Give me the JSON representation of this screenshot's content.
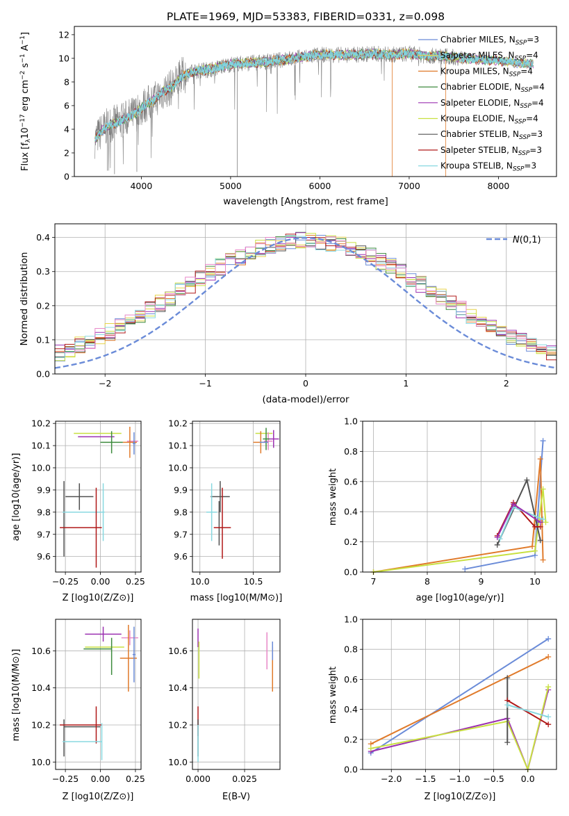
{
  "figure": {
    "title": "PLATE=1969, MJD=53383, FIBERID=0331, z=0.098"
  },
  "chart_data": [
    {
      "id": "spectrum",
      "type": "line",
      "xlabel": "wavelength [Angstrom, rest frame]",
      "ylabel": "Flux [f_λ 10^-17 erg cm^-2 s^-1 A^-1]",
      "xlim": [
        3250,
        8650
      ],
      "ylim": [
        0,
        12.7
      ],
      "xticks": [
        4000,
        5000,
        6000,
        7000,
        8000
      ],
      "yticks": [
        0,
        2,
        4,
        6,
        8,
        10,
        12
      ],
      "grid": false,
      "legend": "right",
      "legend_entries": [
        {
          "name": "Chabrier MILES, N_SSP=3",
          "color": "#6a8bd8"
        },
        {
          "name": "Salpeter MILES, N_SSP=4",
          "color": "#e6d34a"
        },
        {
          "name": "Kroupa MILES, N_SSP=4",
          "color": "#e07a2a"
        },
        {
          "name": "Chabrier ELODIE, N_SSP=4",
          "color": "#3d8a3d"
        },
        {
          "name": "Salpeter ELODIE, N_SSP=4",
          "color": "#9b30b0"
        },
        {
          "name": "Kroupa ELODIE, N_SSP=4",
          "color": "#c8e040"
        },
        {
          "name": "Chabrier STELIB, N_SSP=3",
          "color": "#505050"
        },
        {
          "name": "Salpeter STELIB, N_SSP=3",
          "color": "#b01818"
        },
        {
          "name": "Kroupa STELIB, N_SSP=3",
          "color": "#88d8e0"
        }
      ],
      "data_color": "#808080",
      "model_color": "#7fd3de",
      "model_curve": [
        [
          3480,
          3.1
        ],
        [
          3560,
          3.9
        ],
        [
          3650,
          4.4
        ],
        [
          3750,
          4.6
        ],
        [
          3850,
          5.0
        ],
        [
          3950,
          5.4
        ],
        [
          4050,
          6.1
        ],
        [
          4150,
          6.5
        ],
        [
          4250,
          7.2
        ],
        [
          4350,
          7.6
        ],
        [
          4450,
          8.5
        ],
        [
          4600,
          8.9
        ],
        [
          4800,
          9.1
        ],
        [
          5000,
          9.5
        ],
        [
          5200,
          9.6
        ],
        [
          5400,
          9.7
        ],
        [
          5600,
          9.9
        ],
        [
          5800,
          10.1
        ],
        [
          6000,
          10.3
        ],
        [
          6200,
          10.3
        ],
        [
          6400,
          10.3
        ],
        [
          6600,
          10.4
        ],
        [
          6800,
          10.3
        ],
        [
          7000,
          10.4
        ],
        [
          7200,
          10.2
        ],
        [
          7400,
          10.2
        ],
        [
          7600,
          10.0
        ],
        [
          7800,
          9.9
        ],
        [
          8000,
          9.8
        ],
        [
          8200,
          9.6
        ],
        [
          8390,
          9.5
        ]
      ]
    },
    {
      "id": "residuals",
      "type": "line",
      "xlabel": "(data-model)/error",
      "ylabel": "Normed distribution",
      "xlim": [
        -2.5,
        2.5
      ],
      "ylim": [
        0,
        0.44
      ],
      "xticks": [
        -2,
        -1,
        0,
        1,
        2
      ],
      "yticks": [
        0.0,
        0.1,
        0.2,
        0.3,
        0.4
      ],
      "grid": true,
      "legend": "top-right",
      "reference_label": "N(0,1)",
      "reference_color": "#6a8bd8",
      "hist_colors": [
        "#6a8bd8",
        "#e6d34a",
        "#e07a2a",
        "#3d8a3d",
        "#9b30b0",
        "#c8e040",
        "#505050",
        "#b01818",
        "#88d8e0",
        "#e888c8"
      ]
    },
    {
      "id": "age-vs-Z",
      "type": "scatter",
      "xlabel": "Z [log10(Z/Z⊙)]",
      "ylabel": "age [log10(age/yr)]",
      "xlim": [
        -0.32,
        0.29
      ],
      "ylim": [
        9.53,
        10.21
      ],
      "xticks": [
        -0.25,
        0.0,
        0.25
      ],
      "yticks": [
        9.6,
        9.7,
        9.8,
        9.9,
        10.0,
        10.1,
        10.2
      ],
      "grid": true,
      "points": [
        {
          "color": "#c8e040",
          "x": -0.02,
          "xerr": 0.17,
          "y": 10.155,
          "yerr": 0.0
        },
        {
          "color": "#9b30b0",
          "x": -0.03,
          "xerr": 0.13,
          "y": 10.14,
          "yerr": 0.0
        },
        {
          "color": "#e888c8",
          "x": 0.23,
          "xerr": 0.04,
          "y": 10.12,
          "yerr": 0.0
        },
        {
          "color": "#e07a2a",
          "x": 0.21,
          "xerr": 0.05,
          "y": 10.115,
          "yerr": 0.07
        },
        {
          "color": "#6a8bd8",
          "x": 0.24,
          "xerr": 0.01,
          "y": 10.11,
          "yerr": 0.05
        },
        {
          "color": "#3d8a3d",
          "x": 0.08,
          "xerr": 0.08,
          "y": 10.115,
          "yerr": 0.05
        },
        {
          "color": "#505050",
          "x": -0.15,
          "xerr": 0.1,
          "y": 9.87,
          "yerr": 0.06
        },
        {
          "color": "#505050",
          "x": -0.26,
          "xerr": 0.0,
          "y": 9.77,
          "yerr": 0.17
        },
        {
          "color": "#88d8e0",
          "x": 0.02,
          "xerr": 0.01,
          "y": 9.8,
          "yerr": 0.13
        },
        {
          "color": "#88d8e0",
          "x": -0.13,
          "xerr": 0.14,
          "y": 9.8,
          "yerr": 0.0
        },
        {
          "color": "#b01818",
          "x": -0.03,
          "xerr": 0.0,
          "y": 9.73,
          "yerr": 0.18
        },
        {
          "color": "#b01818",
          "x": -0.14,
          "xerr": 0.15,
          "y": 9.73,
          "yerr": 0.0
        }
      ]
    },
    {
      "id": "age-vs-mass",
      "type": "scatter",
      "xlabel": "mass [log10(M/M⊙)]",
      "ylabel": "",
      "xlim": [
        9.93,
        10.75
      ],
      "ylim": [
        9.53,
        10.21
      ],
      "xticks": [
        10.0,
        10.5
      ],
      "yticks": [
        9.6,
        9.7,
        9.8,
        9.9,
        10.0,
        10.1,
        10.2
      ],
      "grid": true,
      "points": [
        {
          "color": "#c8e040",
          "x": 10.6,
          "xerr": 0.08,
          "y": 10.155,
          "yerr": 0.0
        },
        {
          "color": "#9b30b0",
          "x": 10.69,
          "xerr": 0.05,
          "y": 10.13,
          "yerr": 0.04
        },
        {
          "color": "#e07a2a",
          "x": 10.57,
          "xerr": 0.07,
          "y": 10.115,
          "yerr": 0.05
        },
        {
          "color": "#e888c8",
          "x": 10.64,
          "xerr": 0.04,
          "y": 10.12,
          "yerr": 0.04
        },
        {
          "color": "#3d8a3d",
          "x": 10.62,
          "xerr": 0.03,
          "y": 10.13,
          "yerr": 0.05
        },
        {
          "color": "#6a8bd8",
          "x": 10.6,
          "xerr": 0.04,
          "y": 10.115,
          "yerr": 0.0
        },
        {
          "color": "#505050",
          "x": 10.19,
          "xerr": 0.09,
          "y": 9.87,
          "yerr": 0.07
        },
        {
          "color": "#505050",
          "x": 10.18,
          "xerr": 0.0,
          "y": 9.75,
          "yerr": 0.1
        },
        {
          "color": "#88d8e0",
          "x": 10.11,
          "xerr": 0.05,
          "y": 9.8,
          "yerr": 0.13
        },
        {
          "color": "#b01818",
          "x": 10.21,
          "xerr": 0.08,
          "y": 9.73,
          "yerr": 0.0
        },
        {
          "color": "#b01818",
          "x": 10.21,
          "xerr": 0.0,
          "y": 9.75,
          "yerr": 0.16
        }
      ]
    },
    {
      "id": "weight-vs-age",
      "type": "line",
      "xlabel": "age [log10(age/yr)]",
      "ylabel": "mass weight",
      "xlim": [
        6.8,
        10.4
      ],
      "ylim": [
        0,
        1.0
      ],
      "xticks": [
        7,
        8,
        9,
        10
      ],
      "yticks": [
        0.0,
        0.2,
        0.4,
        0.6,
        0.8,
        1.0
      ],
      "grid": true,
      "series": [
        {
          "color": "#6a8bd8",
          "x": [
            8.7,
            10.0,
            10.15
          ],
          "y": [
            0.02,
            0.11,
            0.87
          ]
        },
        {
          "color": "#e07a2a",
          "x": [
            7.0,
            9.95,
            10.1,
            10.15
          ],
          "y": [
            0.0,
            0.17,
            0.75,
            0.08
          ]
        },
        {
          "color": "#c8e040",
          "x": [
            7.0,
            10.0,
            10.15,
            10.2
          ],
          "y": [
            0.0,
            0.14,
            0.55,
            0.33
          ]
        },
        {
          "color": "#505050",
          "x": [
            9.3,
            9.85,
            10.1
          ],
          "y": [
            0.18,
            0.61,
            0.21
          ]
        },
        {
          "color": "#b01818",
          "x": [
            9.3,
            9.6,
            10.0,
            10.1
          ],
          "y": [
            0.24,
            0.46,
            0.3,
            0.3
          ]
        },
        {
          "color": "#88d8e0",
          "x": [
            9.35,
            9.6,
            10.15
          ],
          "y": [
            0.22,
            0.43,
            0.35
          ]
        },
        {
          "color": "#9b30b0",
          "x": [
            9.3,
            9.6,
            10.1
          ],
          "y": [
            0.23,
            0.45,
            0.33
          ]
        }
      ]
    },
    {
      "id": "mass-vs-Z",
      "type": "scatter",
      "xlabel": "Z [log10(Z/Z⊙)]",
      "ylabel": "mass [log10(M/M⊙)]",
      "xlim": [
        -0.32,
        0.29
      ],
      "ylim": [
        9.96,
        10.77
      ],
      "xticks": [
        -0.25,
        0.0,
        0.25
      ],
      "yticks": [
        10.0,
        10.2,
        10.4,
        10.6
      ],
      "grid": true,
      "points": [
        {
          "color": "#9b30b0",
          "x": 0.02,
          "xerr": 0.13,
          "y": 10.69,
          "yerr": 0.04
        },
        {
          "color": "#e888c8",
          "x": 0.21,
          "xerr": 0.06,
          "y": 10.67,
          "yerr": 0.04
        },
        {
          "color": "#c8e040",
          "x": 0.03,
          "xerr": 0.14,
          "y": 10.62,
          "yerr": 0.0
        },
        {
          "color": "#3d8a3d",
          "x": -0.02,
          "xerr": 0.1,
          "y": 10.61,
          "yerr": 0.0
        },
        {
          "color": "#3d8a3d",
          "x": 0.08,
          "xerr": 0.0,
          "y": 10.57,
          "yerr": 0.1
        },
        {
          "color": "#e07a2a",
          "x": 0.2,
          "xerr": 0.06,
          "y": 10.56,
          "yerr": 0.18
        },
        {
          "color": "#6a8bd8",
          "x": 0.24,
          "xerr": 0.01,
          "y": 10.58,
          "yerr": 0.15
        },
        {
          "color": "#505050",
          "x": -0.26,
          "xerr": 0.0,
          "y": 10.13,
          "yerr": 0.1
        },
        {
          "color": "#505050",
          "x": -0.13,
          "xerr": 0.13,
          "y": 10.19,
          "yerr": 0.0
        },
        {
          "color": "#b01818",
          "x": -0.14,
          "xerr": 0.15,
          "y": 10.2,
          "yerr": 0.0
        },
        {
          "color": "#b01818",
          "x": -0.03,
          "xerr": 0.0,
          "y": 10.2,
          "yerr": 0.1
        },
        {
          "color": "#88d8e0",
          "x": -0.13,
          "xerr": 0.14,
          "y": 10.11,
          "yerr": 0.0
        },
        {
          "color": "#88d8e0",
          "x": 0.01,
          "xerr": 0.0,
          "y": 10.11,
          "yerr": 0.1
        }
      ]
    },
    {
      "id": "mass-vs-ebv",
      "type": "scatter",
      "xlabel": "E(B-V)",
      "ylabel": "",
      "xlim": [
        -0.003,
        0.044
      ],
      "ylim": [
        9.96,
        10.77
      ],
      "xticks": [
        0.0,
        0.025
      ],
      "xtick_labels": [
        "0.000",
        "0.025"
      ],
      "yticks": [
        10.0,
        10.2,
        10.4,
        10.6
      ],
      "grid": true,
      "points": [
        {
          "color": "#9b30b0",
          "x": 0.0,
          "xerr": 0.0,
          "y": 10.67,
          "yerr": 0.05
        },
        {
          "color": "#c8e040",
          "x": 0.0005,
          "xerr": 0.0,
          "y": 10.55,
          "yerr": 0.1
        },
        {
          "color": "#e888c8",
          "x": 0.037,
          "xerr": 0.0,
          "y": 10.6,
          "yerr": 0.1
        },
        {
          "color": "#e07a2a",
          "x": 0.04,
          "xerr": 0.0,
          "y": 10.5,
          "yerr": 0.12
        },
        {
          "color": "#6a8bd8",
          "x": 0.04,
          "xerr": 0.0,
          "y": 10.6,
          "yerr": 0.05
        },
        {
          "color": "#b01818",
          "x": 0.0,
          "xerr": 0.0,
          "y": 10.22,
          "yerr": 0.08
        },
        {
          "color": "#505050",
          "x": 0.0,
          "xerr": 0.0,
          "y": 10.13,
          "yerr": 0.1
        },
        {
          "color": "#88d8e0",
          "x": 0.0,
          "xerr": 0.0,
          "y": 10.1,
          "yerr": 0.1
        }
      ]
    },
    {
      "id": "weight-vs-Z",
      "type": "line",
      "xlabel": "Z [log10(Z/Z⊙)]",
      "ylabel": "mass weight",
      "xlim": [
        -2.42,
        0.42
      ],
      "ylim": [
        0,
        1.0
      ],
      "xticks": [
        -2.0,
        -1.5,
        -1.0,
        -0.5,
        0.0
      ],
      "yticks": [
        0.0,
        0.2,
        0.4,
        0.6,
        0.8,
        1.0
      ],
      "grid": true,
      "series": [
        {
          "color": "#6a8bd8",
          "x": [
            -2.3,
            0.3
          ],
          "y": [
            0.11,
            0.87
          ]
        },
        {
          "color": "#e07a2a",
          "x": [
            -2.3,
            0.3
          ],
          "y": [
            0.17,
            0.75
          ]
        },
        {
          "color": "#9b30b0",
          "x": [
            -2.3,
            -0.3,
            0.0,
            0.3
          ],
          "y": [
            0.12,
            0.34,
            0.0,
            0.53
          ]
        },
        {
          "color": "#c8e040",
          "x": [
            -2.3,
            -0.3,
            0.0,
            0.3
          ],
          "y": [
            0.14,
            0.32,
            0.0,
            0.55
          ]
        },
        {
          "color": "#505050",
          "x": [
            -0.3,
            -0.3
          ],
          "y": [
            0.18,
            0.61
          ]
        },
        {
          "color": "#b01818",
          "x": [
            -0.3,
            0.3
          ],
          "y": [
            0.46,
            0.3
          ]
        },
        {
          "color": "#88d8e0",
          "x": [
            -0.3,
            0.3
          ],
          "y": [
            0.43,
            0.35
          ]
        }
      ]
    }
  ]
}
